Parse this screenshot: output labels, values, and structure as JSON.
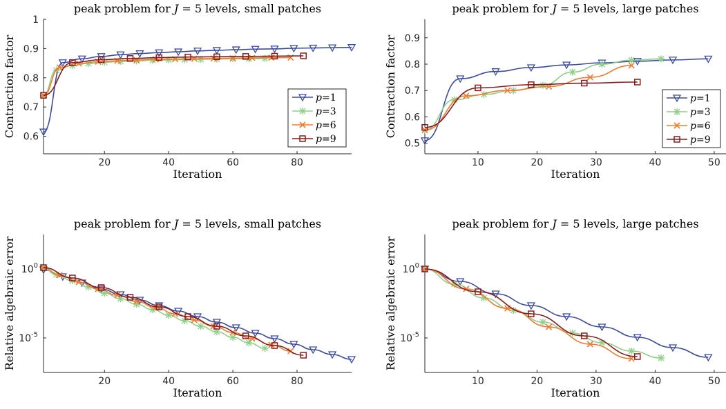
{
  "colors": {
    "p1": "#3b4aa5",
    "p3": "#8fd088",
    "p6": "#f07a30",
    "p9": "#8b1a1a"
  },
  "chart_data": [
    {
      "type": "line",
      "title": "peak problem for J = 5 levels, small patches",
      "xlabel": "Iteration",
      "ylabel": "Contraction factor",
      "xlim": [
        1,
        97
      ],
      "ylim": [
        0.54,
        1.0
      ],
      "xticks": [
        20,
        40,
        60,
        80
      ],
      "yticks": [
        0.6,
        0.7,
        0.8,
        0.9,
        1.0
      ],
      "ytick_labels": [
        "0.6",
        "0.7",
        "0.8",
        "0.9",
        "1"
      ],
      "yscale": "linear",
      "legend": "bottom-right",
      "series": [
        {
          "name": "p=1",
          "marker": "triangle-down",
          "x": [
            1,
            7,
            13,
            19,
            25,
            31,
            37,
            43,
            49,
            55,
            61,
            67,
            73,
            79,
            85,
            91,
            97
          ],
          "y": [
            0.615,
            0.852,
            0.865,
            0.873,
            0.879,
            0.883,
            0.886,
            0.889,
            0.892,
            0.894,
            0.896,
            0.898,
            0.899,
            0.901,
            0.902,
            0.903,
            0.904
          ]
        },
        {
          "name": "p=3",
          "marker": "asterisk",
          "x": [
            1,
            5,
            10,
            15,
            20,
            25,
            30,
            35,
            40,
            45,
            50,
            55,
            60,
            65,
            70
          ],
          "y": [
            0.74,
            0.826,
            0.842,
            0.849,
            0.853,
            0.856,
            0.858,
            0.86,
            0.861,
            0.862,
            0.863,
            0.864,
            0.865,
            0.865,
            0.866
          ]
        },
        {
          "name": "p=6",
          "marker": "cross",
          "x": [
            1,
            6,
            12,
            18,
            24,
            30,
            36,
            42,
            48,
            54,
            60,
            66,
            72,
            78
          ],
          "y": [
            0.74,
            0.835,
            0.849,
            0.855,
            0.858,
            0.861,
            0.863,
            0.864,
            0.865,
            0.866,
            0.867,
            0.868,
            0.869,
            0.869
          ]
        },
        {
          "name": "p=9",
          "marker": "square",
          "x": [
            1,
            10,
            19,
            28,
            37,
            46,
            55,
            64,
            73,
            82
          ],
          "y": [
            0.74,
            0.852,
            0.862,
            0.866,
            0.869,
            0.871,
            0.872,
            0.873,
            0.874,
            0.875
          ]
        }
      ]
    },
    {
      "type": "line",
      "title": "peak problem for J = 5 levels, large patches",
      "xlabel": "Iteration",
      "ylabel": "Contraction factor",
      "xlim": [
        1,
        52
      ],
      "ylim": [
        0.46,
        0.97
      ],
      "xticks": [
        10,
        20,
        30,
        40,
        50
      ],
      "yticks": [
        0.5,
        0.6,
        0.7,
        0.8,
        0.9
      ],
      "ytick_labels": [
        "0.5",
        "0.6",
        "0.7",
        "0.8",
        "0.9"
      ],
      "yscale": "linear",
      "legend": "center-right",
      "series": [
        {
          "name": "p=1",
          "marker": "triangle-down",
          "x": [
            1,
            7,
            13,
            19,
            25,
            31,
            37,
            43,
            49
          ],
          "y": [
            0.51,
            0.745,
            0.772,
            0.787,
            0.797,
            0.805,
            0.811,
            0.816,
            0.82
          ]
        },
        {
          "name": "p=3",
          "marker": "asterisk",
          "x": [
            1,
            6,
            11,
            16,
            21,
            26,
            31,
            36,
            41
          ],
          "y": [
            0.55,
            0.665,
            0.685,
            0.7,
            0.72,
            0.77,
            0.8,
            0.815,
            0.82
          ]
        },
        {
          "name": "p=6",
          "marker": "cross",
          "x": [
            1,
            8,
            15,
            22,
            29,
            36
          ],
          "y": [
            0.55,
            0.68,
            0.7,
            0.715,
            0.75,
            0.795
          ]
        },
        {
          "name": "p=9",
          "marker": "square",
          "x": [
            1,
            10,
            19,
            28,
            37
          ],
          "y": [
            0.56,
            0.71,
            0.722,
            0.728,
            0.732
          ]
        }
      ]
    },
    {
      "type": "line",
      "title": "peak problem for J = 5 levels, small patches",
      "xlabel": "Iteration",
      "ylabel": "Relative algebraic error",
      "xlim": [
        1,
        97
      ],
      "ylim": [
        -7.5,
        2.5
      ],
      "yscale": "log",
      "xticks": [
        20,
        40,
        60,
        80
      ],
      "yticks": [
        0,
        -5
      ],
      "ytick_labels": [
        "10^0",
        "10^-5"
      ],
      "legend": "none",
      "series": [
        {
          "name": "p=1",
          "marker": "triangle-down",
          "x": [
            1,
            7,
            13,
            19,
            25,
            31,
            37,
            43,
            49,
            55,
            61,
            67,
            73,
            79,
            85,
            91,
            97
          ],
          "y": [
            -0.05,
            -0.55,
            -1.0,
            -1.45,
            -1.85,
            -2.25,
            -2.65,
            -3.05,
            -3.45,
            -3.85,
            -4.25,
            -4.65,
            -5.05,
            -5.45,
            -5.85,
            -6.2,
            -6.55
          ]
        },
        {
          "name": "p=3",
          "marker": "asterisk",
          "x": [
            1,
            5,
            10,
            15,
            20,
            25,
            30,
            35,
            40,
            45,
            50,
            55,
            60,
            65,
            70
          ],
          "y": [
            0.05,
            -0.4,
            -0.85,
            -1.3,
            -1.75,
            -2.15,
            -2.55,
            -2.95,
            -3.35,
            -3.75,
            -4.15,
            -4.55,
            -4.95,
            -5.35,
            -5.75
          ]
        },
        {
          "name": "p=6",
          "marker": "cross",
          "x": [
            1,
            6,
            12,
            18,
            24,
            30,
            36,
            42,
            48,
            54,
            60,
            66,
            72,
            78
          ],
          "y": [
            0.1,
            -0.45,
            -0.95,
            -1.45,
            -1.9,
            -2.35,
            -2.8,
            -3.25,
            -3.7,
            -4.15,
            -4.6,
            -5.05,
            -5.5,
            -5.95
          ]
        },
        {
          "name": "p=9",
          "marker": "square",
          "x": [
            1,
            10,
            19,
            28,
            37,
            46,
            55,
            64,
            73,
            82
          ],
          "y": [
            0.1,
            -0.65,
            -1.35,
            -2.05,
            -2.75,
            -3.45,
            -4.15,
            -4.85,
            -5.55,
            -6.25
          ]
        }
      ]
    },
    {
      "type": "line",
      "title": "peak problem for J = 5 levels, large patches",
      "xlabel": "Iteration",
      "ylabel": "Relative algebraic error",
      "xlim": [
        1,
        52
      ],
      "ylim": [
        -7.5,
        2.5
      ],
      "yscale": "log",
      "xticks": [
        10,
        20,
        30,
        40,
        50
      ],
      "yticks": [
        0,
        -5
      ],
      "ytick_labels": [
        "10^0",
        "10^-5"
      ],
      "legend": "none",
      "series": [
        {
          "name": "p=1",
          "marker": "triangle-down",
          "x": [
            1,
            7,
            13,
            19,
            25,
            31,
            37,
            43,
            49
          ],
          "y": [
            0.0,
            -0.9,
            -1.8,
            -2.65,
            -3.45,
            -4.2,
            -4.95,
            -5.7,
            -6.4
          ]
        },
        {
          "name": "p=3",
          "marker": "asterisk",
          "x": [
            1,
            6,
            11,
            16,
            21,
            26,
            31,
            36,
            41
          ],
          "y": [
            0.0,
            -1.1,
            -2.1,
            -3.0,
            -3.85,
            -4.65,
            -5.35,
            -5.95,
            -6.45
          ]
        },
        {
          "name": "p=6",
          "marker": "cross",
          "x": [
            1,
            8,
            15,
            22,
            29,
            36
          ],
          "y": [
            0.0,
            -1.45,
            -2.85,
            -4.2,
            -5.45,
            -6.5
          ]
        },
        {
          "name": "p=9",
          "marker": "square",
          "x": [
            1,
            10,
            19,
            28,
            37
          ],
          "y": [
            0.0,
            -1.65,
            -3.25,
            -4.85,
            -6.35
          ]
        }
      ]
    }
  ]
}
